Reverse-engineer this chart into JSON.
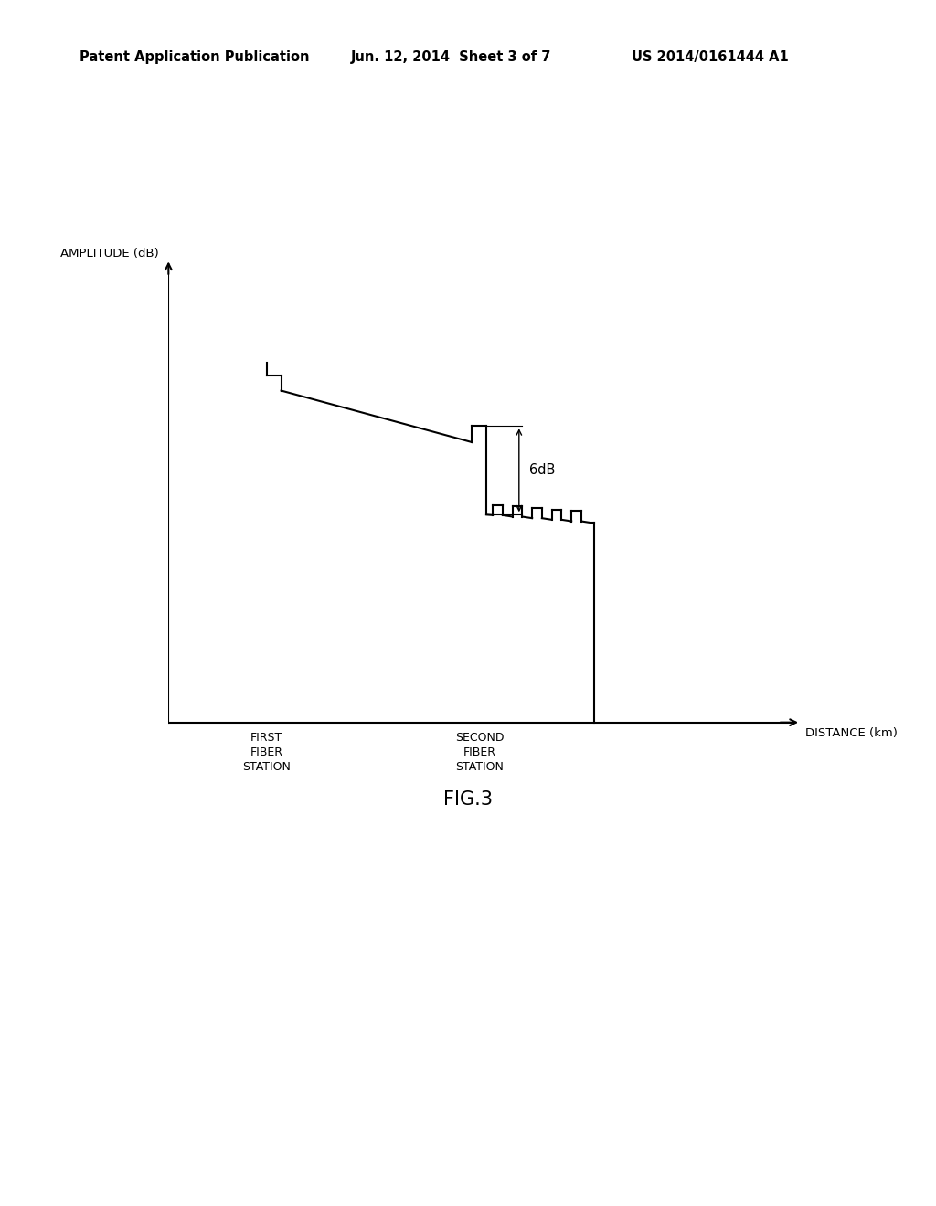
{
  "background_color": "#ffffff",
  "header_left": "Patent Application Publication",
  "header_center": "Jun. 12, 2014  Sheet 3 of 7",
  "header_right": "US 2014/0161444 A1",
  "header_fontsize": 10.5,
  "ylabel": "AMPLITUDE (dB)",
  "xlabel": "DISTANCE (km)",
  "label_first_station": "FIRST\nFIBER\nSTATION",
  "label_second_station": "SECOND\nFIBER\nSTATION",
  "label_6db": "6dB",
  "fig_label": "FIG.3",
  "line_color": "#000000",
  "line_width": 1.5
}
